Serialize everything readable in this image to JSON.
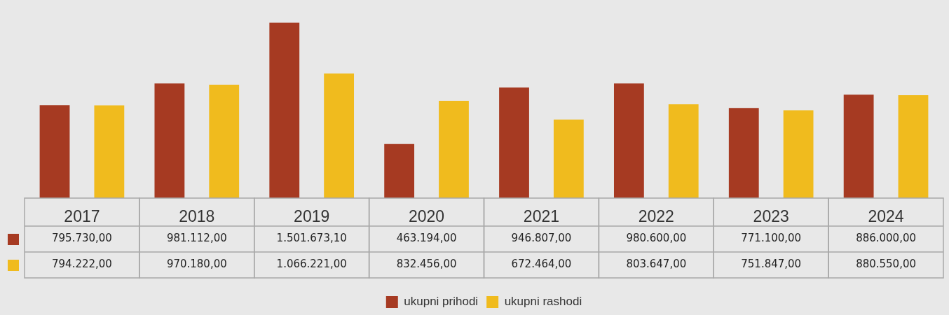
{
  "chart_data": {
    "type": "bar",
    "categories": [
      "2017",
      "2018",
      "2019",
      "2020",
      "2021",
      "2022",
      "2023",
      "2024"
    ],
    "series": [
      {
        "name": "ukupni prihodi",
        "color": "#a63a22",
        "values": [
          795730,
          981112,
          1501673.1,
          463194,
          946807,
          980600,
          771100,
          886000
        ],
        "value_labels": [
          "795.730,00",
          "981.112,00",
          "1.501.673,10",
          "463.194,00",
          "946.807,00",
          "980.600,00",
          "771.100,00",
          "886.000,00"
        ]
      },
      {
        "name": "ukupni rashodi",
        "color": "#f0bb1e",
        "values": [
          794222,
          970180,
          1066221,
          832456,
          672464,
          803647,
          751847,
          880550
        ],
        "value_labels": [
          "794.222,00",
          "970.180,00",
          "1.066.221,00",
          "832.456,00",
          "672.464,00",
          "803.647,00",
          "751.847,00",
          "880.550,00"
        ]
      }
    ],
    "legend": "bottom"
  }
}
